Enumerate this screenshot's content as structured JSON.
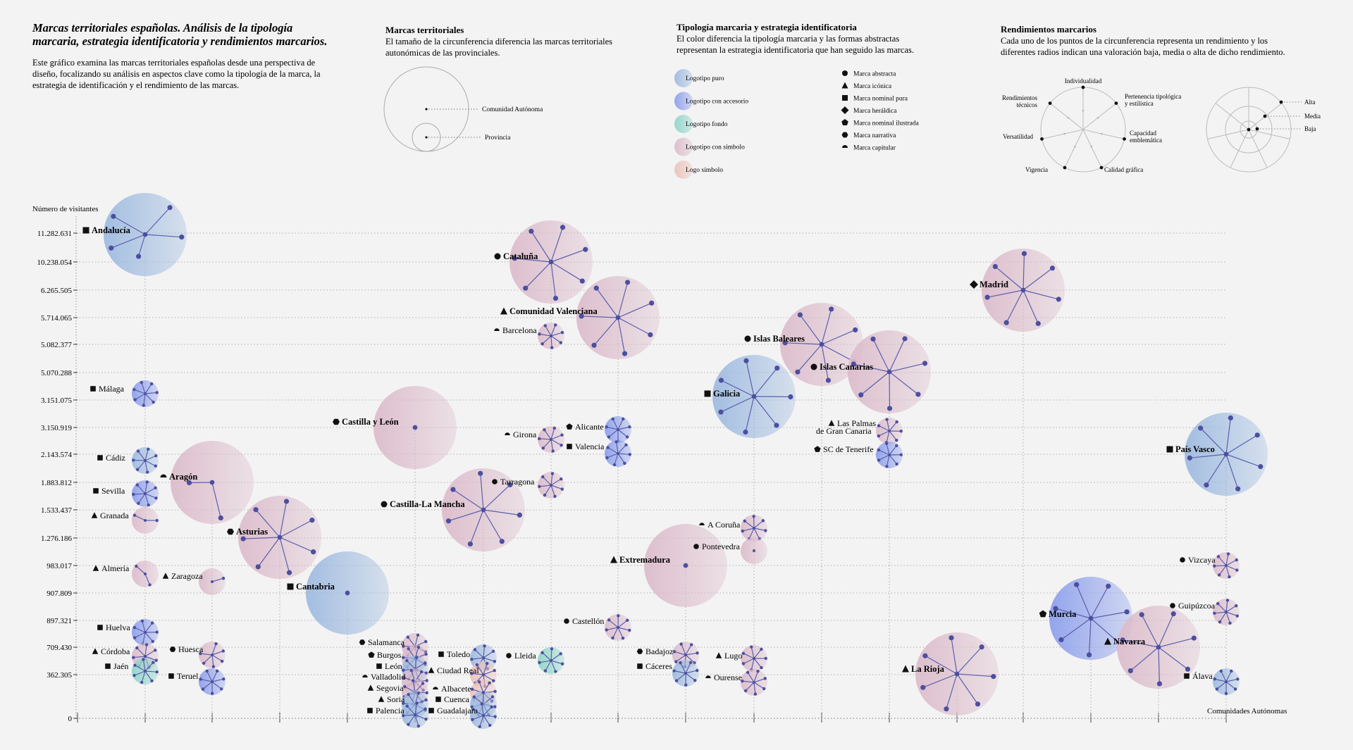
{
  "header": {
    "title_lines": [
      "Marcas territoriales españolas. Análisis de la tipología",
      "marcaria, estrategia identificatoria y rendimientos marcarios."
    ],
    "intro_lines": [
      "Este gráfico examina las marcas territoriales españolas desde una perspectiva de",
      "diseño, focalizando su análisis en aspectos clave como la tipología de la marca, la",
      "estrategia de identificación y el rendimiento de las marcas."
    ]
  },
  "legend_size": {
    "title": "Marcas territoriales",
    "lines": [
      "El tamaño de la circunferencia diferencia las marcas territoriales",
      "autonómicas de las provinciales."
    ],
    "items": [
      "Comunidad Autónoma",
      "Provincia"
    ]
  },
  "legend_type": {
    "title": "Tipología marcaria y estrategia identificatoria",
    "lines": [
      "El color diferencia la tipología marcaria y las formas abstractas",
      "representan la estrategia identificatoria que han seguido las marcas."
    ],
    "types": [
      {
        "label": "Logotipo puro",
        "color": "#9fbbe0"
      },
      {
        "label": "Logotipo con accesorio",
        "color": "#8ea0ec"
      },
      {
        "label": "Logotipo fondo",
        "color": "#8fd5c9"
      },
      {
        "label": "Logotipo con símbolo",
        "color": "#dcbccb"
      },
      {
        "label": "Logo símbolo",
        "color": "#ecc3bc"
      }
    ],
    "strategies": [
      {
        "label": "Marca abstracta",
        "shape": "circle"
      },
      {
        "label": "Marca icónica",
        "shape": "triangle"
      },
      {
        "label": "Marca nominal pura",
        "shape": "square"
      },
      {
        "label": "Marca heráldica",
        "shape": "diamond"
      },
      {
        "label": "Marca nominal ilustrada",
        "shape": "pentagon"
      },
      {
        "label": "Marca narrativa",
        "shape": "hexagon"
      },
      {
        "label": "Marca capitular",
        "shape": "half"
      }
    ]
  },
  "legend_perf": {
    "title": "Rendimientos marcarios",
    "lines": [
      "Cada uno de los puntos de la circunferencia representa un rendimiento y los",
      "diferentes radios indican una valoración baja, media o alta de dicho rendimiento."
    ],
    "axes": [
      [
        "Individualidad"
      ],
      [
        "Pertenencia tipológica",
        "y estilística"
      ],
      [
        "Capacidad",
        "emblemática"
      ],
      [
        "Calidad gráfica"
      ],
      [
        "Vigencia"
      ],
      [
        "Versatilidad"
      ],
      [
        "Rendimientos",
        "técnicos"
      ]
    ],
    "levels": [
      "Alta",
      "Media",
      "Baja"
    ]
  },
  "chart_data": {
    "type": "scatter",
    "ylabel": "Número de visitantes",
    "xlabel": "Comunidades Autónomas",
    "yticks": [
      "11.282.631",
      "10.238.054",
      "6.265.505",
      "5.714.065",
      "5.082.377",
      "5.070.288",
      "3.151.075",
      "3.150.919",
      "2.143.574",
      "1.883.812",
      "1.533.437",
      "1.276.186",
      "983.017",
      "907.809",
      "897.321",
      "709.430",
      "362.305",
      "0"
    ],
    "points": [
      {
        "name": "Andalucía",
        "bold": true,
        "y": "11.282.631",
        "type": "Logotipo puro",
        "strategy": "Marca nominal pura",
        "perf": [
          3,
          1,
          2,
          3,
          3,
          1,
          3
        ]
      },
      {
        "name": "Málaga",
        "y": "3.151.075",
        "type": "Logotipo con accesorio",
        "strategy": "Marca nominal pura",
        "perf": [
          3,
          3,
          3,
          3,
          3,
          3,
          3
        ]
      },
      {
        "name": "Cádiz",
        "y": "2.143.574",
        "type": "Logotipo puro",
        "strategy": "Marca nominal pura",
        "perf": [
          3,
          3,
          3,
          3,
          3,
          3,
          3
        ]
      },
      {
        "name": "Sevilla",
        "y": "1.883.812",
        "type": "Logotipo con accesorio",
        "strategy": "Marca nominal pura",
        "perf": [
          3,
          3,
          3,
          3,
          3,
          3,
          3
        ]
      },
      {
        "name": "Granada",
        "y": "1.533.437",
        "type": "Logotipo con símbolo",
        "strategy": "Marca icónica",
        "perf": [
          3,
          1,
          1,
          3,
          1,
          1,
          1
        ]
      },
      {
        "name": "Almería",
        "y": "983.017",
        "type": "Logotipo con símbolo",
        "strategy": "Marca icónica",
        "perf": [
          3,
          1,
          1,
          3,
          1,
          1,
          1
        ]
      },
      {
        "name": "Huelva",
        "y": "897.321",
        "type": "Logotipo con accesorio",
        "strategy": "Marca nominal pura",
        "perf": [
          3,
          3,
          3,
          3,
          3,
          3,
          3
        ]
      },
      {
        "name": "Córdoba",
        "y": "709.430",
        "type": "Logotipo con símbolo",
        "strategy": "Marca icónica",
        "perf": [
          3,
          3,
          3,
          3,
          3,
          3,
          3
        ]
      },
      {
        "name": "Jaén",
        "y": "362.305",
        "type": "Logotipo fondo",
        "strategy": "Marca nominal pura",
        "perf": [
          3,
          3,
          3,
          3,
          3,
          3,
          3
        ]
      },
      {
        "name": "Aragón",
        "bold": true,
        "y": "1.883.812",
        "type": "Logotipo con símbolo",
        "strategy": "Marca capitular",
        "perf": [
          1,
          1,
          1,
          3,
          1,
          2,
          1
        ]
      },
      {
        "name": "Zaragoza",
        "y": "983.017",
        "type": "Logotipo con símbolo",
        "strategy": "Marca icónica",
        "perf": [
          1,
          1,
          1,
          3,
          1,
          1,
          1
        ]
      },
      {
        "name": "Huesca",
        "y": "709.430",
        "type": "Logotipo con símbolo",
        "strategy": "Marca narrativa",
        "perf": [
          3,
          3,
          1,
          3,
          3,
          3,
          3
        ]
      },
      {
        "name": "Teruel",
        "y": "362.305",
        "type": "Logotipo con accesorio",
        "strategy": "Marca nominal pura",
        "perf": [
          3,
          3,
          3,
          3,
          3,
          3,
          3
        ]
      },
      {
        "name": "Asturias",
        "bold": true,
        "y": "1.276.186",
        "type": "Logotipo con símbolo",
        "strategy": "Marca narrativa",
        "perf": [
          3,
          3,
          3,
          3,
          3,
          3,
          3
        ]
      },
      {
        "name": "Cantabria",
        "bold": true,
        "y": "907.809",
        "type": "Logotipo puro",
        "strategy": "Marca nominal pura",
        "perf": [
          1,
          1,
          1,
          1,
          1,
          1,
          1
        ]
      },
      {
        "name": "Castilla y León",
        "bold": true,
        "y": "3.150.919",
        "type": "Logotipo con símbolo",
        "strategy": "Marca narrativa",
        "perf": [
          1,
          1,
          1,
          1,
          1,
          1,
          1
        ]
      },
      {
        "name": "Salamanca",
        "y": "709.430",
        "type": "Logotipo con símbolo",
        "strategy": "Marca narrativa",
        "perf": [
          3,
          3,
          3,
          3,
          3,
          3,
          3
        ]
      },
      {
        "name": "Burgos",
        "y": "709.430",
        "type": "Logotipo con símbolo",
        "strategy": "Marca nominal ilustrada",
        "perf": [
          3,
          3,
          3,
          3,
          3,
          3,
          3
        ]
      },
      {
        "name": "León",
        "y": "362.305",
        "type": "Logotipo puro",
        "strategy": "Marca nominal pura",
        "perf": [
          3,
          3,
          3,
          3,
          3,
          3,
          3
        ]
      },
      {
        "name": "Valladolid",
        "y": "362.305",
        "type": "Logotipo con símbolo",
        "strategy": "Marca capitular",
        "perf": [
          3,
          3,
          3,
          3,
          3,
          3,
          3
        ]
      },
      {
        "name": "Segovia",
        "y": "0",
        "type": "Logotipo con símbolo",
        "strategy": "Marca icónica",
        "perf": [
          3,
          3,
          3,
          3,
          3,
          3,
          3
        ]
      },
      {
        "name": "Soria",
        "y": "0",
        "type": "Logotipo puro",
        "strategy": "Marca icónica",
        "perf": [
          3,
          3,
          3,
          3,
          3,
          3,
          3
        ]
      },
      {
        "name": "Palencia",
        "y": "0",
        "type": "Logotipo puro",
        "strategy": "Marca nominal pura",
        "perf": [
          3,
          3,
          3,
          3,
          3,
          3,
          3
        ]
      },
      {
        "name": "Castilla-La Mancha",
        "bold": true,
        "y": "1.533.437",
        "type": "Logotipo con símbolo",
        "strategy": "Marca abstracta",
        "perf": [
          3,
          3,
          3,
          3,
          3,
          3,
          3
        ]
      },
      {
        "name": "Toledo",
        "y": "709.430",
        "type": "Logotipo puro",
        "strategy": "Marca nominal pura",
        "perf": [
          3,
          3,
          3,
          3,
          3,
          3,
          3
        ]
      },
      {
        "name": "Ciudad Real",
        "y": "362.305",
        "type": "Logo símbolo",
        "strategy": "Marca icónica",
        "perf": [
          3,
          3,
          3,
          3,
          3,
          3,
          3
        ]
      },
      {
        "name": "Albacete",
        "y": "0",
        "type": "Logo símbolo",
        "strategy": "Marca capitular",
        "perf": [
          3,
          3,
          3,
          3,
          3,
          3,
          3
        ]
      },
      {
        "name": "Cuenca",
        "y": "0",
        "type": "Logotipo puro",
        "strategy": "Marca nominal pura",
        "perf": [
          3,
          3,
          3,
          3,
          3,
          3,
          3
        ]
      },
      {
        "name": "Guadalajara",
        "y": "0",
        "type": "Logotipo puro",
        "strategy": "Marca nominal pura",
        "perf": [
          3,
          3,
          3,
          3,
          3,
          3,
          3
        ]
      },
      {
        "name": "Cataluña",
        "bold": true,
        "y": "10.238.054",
        "type": "Logotipo con símbolo",
        "strategy": "Marca abstracta",
        "perf": [
          3,
          3,
          3,
          3,
          3,
          3,
          3
        ]
      },
      {
        "name": "Barcelona",
        "y": "5.082.377",
        "type": "Logotipo con símbolo",
        "strategy": "Marca capitular",
        "perf": [
          3,
          3,
          3,
          3,
          3,
          3,
          3
        ]
      },
      {
        "name": "Girona",
        "y": "2.143.574",
        "type": "Logotipo con símbolo",
        "strategy": "Marca capitular",
        "perf": [
          3,
          3,
          3,
          3,
          3,
          3,
          3
        ]
      },
      {
        "name": "Tarragona",
        "y": "1.883.812",
        "type": "Logotipo con símbolo",
        "strategy": "Marca abstracta",
        "perf": [
          3,
          3,
          3,
          3,
          3,
          3,
          3
        ]
      },
      {
        "name": "Lleida",
        "y": "709.430",
        "type": "Logotipo fondo",
        "strategy": "Marca abstracta",
        "perf": [
          3,
          3,
          3,
          3,
          3,
          3,
          3
        ]
      },
      {
        "name": "Comunidad Valenciana",
        "bold": true,
        "y": "5.714.065",
        "type": "Logotipo con símbolo",
        "strategy": "Marca icónica",
        "perf": [
          3,
          3,
          3,
          3,
          3,
          3,
          3
        ]
      },
      {
        "name": "Alicante",
        "y": "3.150.919",
        "type": "Logotipo con accesorio",
        "strategy": "Marca nominal ilustrada",
        "perf": [
          3,
          3,
          3,
          3,
          3,
          3,
          3
        ]
      },
      {
        "name": "Valencia",
        "y": "2.143.574",
        "type": "Logotipo con accesorio",
        "strategy": "Marca nominal pura",
        "perf": [
          3,
          3,
          3,
          3,
          3,
          3,
          3
        ]
      },
      {
        "name": "Castellón",
        "y": "897.321",
        "type": "Logotipo con símbolo",
        "strategy": "Marca abstracta",
        "perf": [
          3,
          3,
          3,
          3,
          3,
          3,
          3
        ]
      },
      {
        "name": "Extremadura",
        "bold": true,
        "y": "983.017",
        "type": "Logotipo con símbolo",
        "strategy": "Marca icónica",
        "perf": [
          1,
          1,
          1,
          1,
          1,
          1,
          1
        ]
      },
      {
        "name": "Badajoz",
        "y": "709.430",
        "type": "Logotipo con símbolo",
        "strategy": "Marca narrativa",
        "perf": [
          3,
          3,
          3,
          3,
          3,
          3,
          3
        ]
      },
      {
        "name": "Cáceres",
        "y": "362.305",
        "type": "Logotipo puro",
        "strategy": "Marca nominal pura",
        "perf": [
          3,
          3,
          3,
          3,
          3,
          3,
          3
        ]
      },
      {
        "name": "Galicia",
        "bold": true,
        "y": "3.151.075",
        "type": "Logotipo puro",
        "strategy": "Marca nominal pura",
        "perf": [
          3,
          3,
          3,
          3,
          3,
          3,
          3
        ]
      },
      {
        "name": "A Coruña",
        "y": "1.276.186",
        "type": "Logotipo con símbolo",
        "strategy": "Marca capitular",
        "perf": [
          3,
          3,
          3,
          3,
          3,
          3,
          3
        ]
      },
      {
        "name": "Pontevedra",
        "y": "1.276.186",
        "type": "Logotipo con símbolo",
        "strategy": "Marca abstracta",
        "perf": [
          1,
          1,
          1,
          1,
          1,
          1,
          1
        ]
      },
      {
        "name": "Lugo",
        "y": "709.430",
        "type": "Logotipo con símbolo",
        "strategy": "Marca icónica",
        "perf": [
          3,
          3,
          3,
          3,
          3,
          3,
          3
        ]
      },
      {
        "name": "Ourense",
        "y": "362.305",
        "type": "Logotipo con símbolo",
        "strategy": "Marca capitular",
        "perf": [
          3,
          3,
          3,
          3,
          3,
          3,
          3
        ]
      },
      {
        "name": "Islas Baleares",
        "bold": true,
        "y": "5.082.377",
        "type": "Logotipo con símbolo",
        "strategy": "Marca abstracta",
        "perf": [
          3,
          3,
          3,
          3,
          3,
          3,
          3
        ]
      },
      {
        "name": "Islas Canarias",
        "bold": true,
        "y": "5.070.288",
        "type": "Logotipo con símbolo",
        "strategy": "Marca abstracta",
        "perf": [
          3,
          3,
          3,
          3,
          3,
          3,
          3
        ]
      },
      {
        "name": "Las Palmas",
        "name2": "de Gran Canaria",
        "y": "3.150.919",
        "type": "Logotipo con símbolo",
        "strategy": "Marca icónica",
        "perf": [
          3,
          3,
          3,
          3,
          3,
          3,
          3
        ]
      },
      {
        "name": "SC de Tenerife",
        "y": "2.143.574",
        "type": "Logotipo con accesorio",
        "strategy": "Marca nominal ilustrada",
        "perf": [
          3,
          3,
          3,
          3,
          3,
          3,
          3
        ]
      },
      {
        "name": "Madrid",
        "bold": true,
        "y": "6.265.505",
        "type": "Logotipo con símbolo",
        "strategy": "Marca heráldica",
        "perf": [
          3,
          3,
          3,
          3,
          3,
          3,
          3
        ]
      },
      {
        "name": "La Rioja",
        "bold": true,
        "y": "362.305",
        "type": "Logotipo con símbolo",
        "strategy": "Marca icónica",
        "perf": [
          3,
          3,
          3,
          3,
          3,
          3,
          3
        ]
      },
      {
        "name": "Murcia",
        "bold": true,
        "y": "897.321",
        "type": "Logotipo con accesorio",
        "strategy": "Marca nominal ilustrada",
        "perf": [
          3,
          3,
          3,
          3,
          3,
          3,
          3
        ]
      },
      {
        "name": "Navarra",
        "bold": true,
        "y": "709.430",
        "type": "Logotipo con símbolo",
        "strategy": "Marca icónica",
        "perf": [
          3,
          3,
          3,
          3,
          3,
          3,
          3
        ]
      },
      {
        "name": "País Vasco",
        "bold": true,
        "y": "2.143.574",
        "type": "Logotipo puro",
        "strategy": "Marca nominal pura",
        "perf": [
          3,
          3,
          3,
          3,
          3,
          3,
          3
        ]
      },
      {
        "name": "Vizcaya",
        "y": "983.017",
        "type": "Logotipo con símbolo",
        "strategy": "Marca abstracta",
        "perf": [
          3,
          3,
          3,
          3,
          3,
          3,
          3
        ]
      },
      {
        "name": "Guipúzcoa",
        "y": "897.321",
        "type": "Logotipo con símbolo",
        "strategy": "Marca abstracta",
        "perf": [
          3,
          3,
          3,
          3,
          3,
          3,
          3
        ]
      },
      {
        "name": "Álava",
        "y": "362.305",
        "type": "Logotipo puro",
        "strategy": "Marca nominal pura",
        "perf": [
          3,
          3,
          3,
          3,
          3,
          3,
          3
        ]
      }
    ]
  }
}
